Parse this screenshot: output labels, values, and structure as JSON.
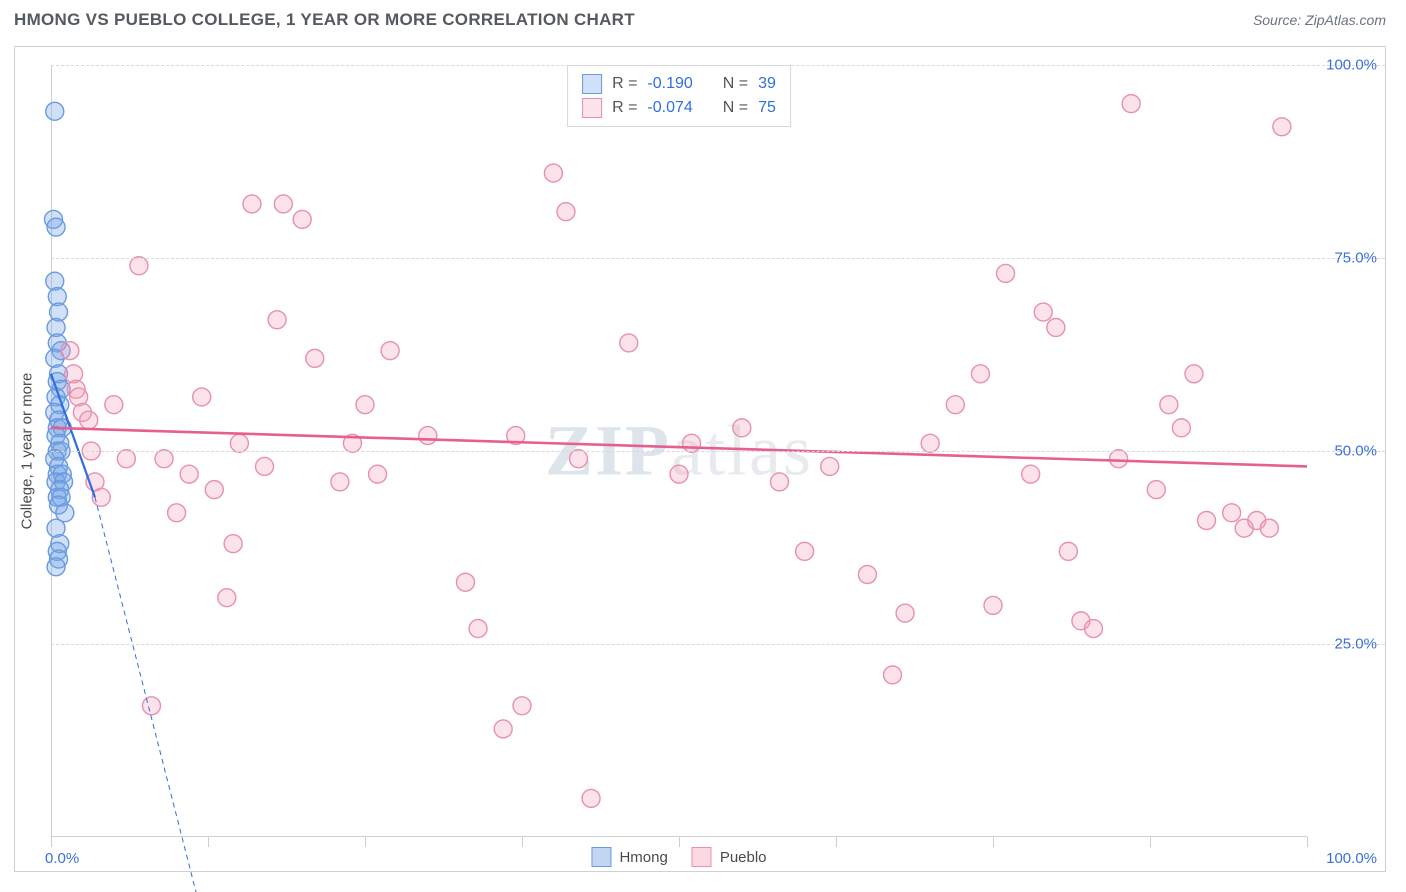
{
  "title": "HMONG VS PUEBLO COLLEGE, 1 YEAR OR MORE CORRELATION CHART",
  "source": "Source: ZipAtlas.com",
  "watermark": {
    "strong": "ZIP",
    "rest": "atlas"
  },
  "chart": {
    "type": "scatter",
    "ylabel": "College, 1 year or more",
    "xlim": [
      0,
      100
    ],
    "ylim": [
      0,
      100
    ],
    "y_ticks": [
      25,
      50,
      75,
      100
    ],
    "y_tick_labels": [
      "25.0%",
      "50.0%",
      "75.0%",
      "100.0%"
    ],
    "x_ticks": [
      0,
      12.5,
      25,
      37.5,
      50,
      62.5,
      75,
      87.5,
      100
    ],
    "x_axis_min_label": "0.0%",
    "x_axis_max_label": "100.0%",
    "background_color": "#ffffff",
    "grid_color": "#d8d8d8",
    "marker_radius": 9,
    "marker_stroke_width": 1.4,
    "series": [
      {
        "name": "Hmong",
        "fill": "rgba(120,165,230,0.35)",
        "stroke": "#6a9ae0",
        "r_label": "R =",
        "r_value": "-0.190",
        "n_label": "N =",
        "n_value": "39",
        "trend": {
          "x1": 0,
          "y1": 60,
          "x2": 3.5,
          "y2": 44,
          "stroke": "#2f6fe0",
          "width": 2.2,
          "dash": "none",
          "ext_x2": 12,
          "ext_y2": -10,
          "ext_dash": "5,4",
          "ext_width": 1
        },
        "points": [
          [
            0.3,
            94
          ],
          [
            0.2,
            80
          ],
          [
            0.4,
            79
          ],
          [
            0.3,
            72
          ],
          [
            0.5,
            70
          ],
          [
            0.6,
            68
          ],
          [
            0.4,
            66
          ],
          [
            0.5,
            64
          ],
          [
            0.8,
            63
          ],
          [
            0.3,
            62
          ],
          [
            0.6,
            60
          ],
          [
            0.5,
            59
          ],
          [
            0.8,
            58
          ],
          [
            0.4,
            57
          ],
          [
            0.7,
            56
          ],
          [
            0.3,
            55
          ],
          [
            0.6,
            54
          ],
          [
            0.5,
            53
          ],
          [
            0.9,
            53
          ],
          [
            0.4,
            52
          ],
          [
            0.7,
            51
          ],
          [
            0.5,
            50
          ],
          [
            0.8,
            50
          ],
          [
            0.3,
            49
          ],
          [
            0.6,
            48
          ],
          [
            0.5,
            47
          ],
          [
            0.9,
            47
          ],
          [
            0.4,
            46
          ],
          [
            1.0,
            46
          ],
          [
            0.7,
            45
          ],
          [
            0.5,
            44
          ],
          [
            0.8,
            44
          ],
          [
            0.6,
            43
          ],
          [
            1.1,
            42
          ],
          [
            0.4,
            40
          ],
          [
            0.7,
            38
          ],
          [
            0.5,
            37
          ],
          [
            0.6,
            36
          ],
          [
            0.4,
            35
          ]
        ]
      },
      {
        "name": "Pueblo",
        "fill": "rgba(245,160,185,0.30)",
        "stroke": "#e890ac",
        "r_label": "R =",
        "r_value": "-0.074",
        "n_label": "N =",
        "n_value": "75",
        "trend": {
          "x1": 0,
          "y1": 53,
          "x2": 100,
          "y2": 48,
          "stroke": "#e75f8e",
          "width": 2.6,
          "dash": "none"
        },
        "points": [
          [
            1.5,
            63
          ],
          [
            1.8,
            60
          ],
          [
            2.0,
            58
          ],
          [
            2.2,
            57
          ],
          [
            2.5,
            55
          ],
          [
            3.0,
            54
          ],
          [
            3.2,
            50
          ],
          [
            3.5,
            46
          ],
          [
            4.0,
            44
          ],
          [
            5.0,
            56
          ],
          [
            6.0,
            49
          ],
          [
            7.0,
            74
          ],
          [
            9.0,
            49
          ],
          [
            10.0,
            42
          ],
          [
            11.0,
            47
          ],
          [
            12.0,
            57
          ],
          [
            13.0,
            45
          ],
          [
            14.0,
            31
          ],
          [
            14.5,
            38
          ],
          [
            15.0,
            51
          ],
          [
            16.0,
            82
          ],
          [
            17.0,
            48
          ],
          [
            18.0,
            67
          ],
          [
            18.5,
            82
          ],
          [
            20.0,
            80
          ],
          [
            21.0,
            62
          ],
          [
            23.0,
            46
          ],
          [
            24.0,
            51
          ],
          [
            25.0,
            56
          ],
          [
            26.0,
            47
          ],
          [
            27.0,
            63
          ],
          [
            30.0,
            52
          ],
          [
            33.0,
            33
          ],
          [
            34.0,
            27
          ],
          [
            36.0,
            14
          ],
          [
            37.0,
            52
          ],
          [
            40.0,
            86
          ],
          [
            41.0,
            81
          ],
          [
            42.0,
            49
          ],
          [
            43.0,
            5
          ],
          [
            46.0,
            64
          ],
          [
            50.0,
            47
          ],
          [
            51.0,
            51
          ],
          [
            55.0,
            53
          ],
          [
            58.0,
            46
          ],
          [
            60.0,
            37
          ],
          [
            62.0,
            48
          ],
          [
            65.0,
            34
          ],
          [
            67.0,
            21
          ],
          [
            68.0,
            29
          ],
          [
            70.0,
            51
          ],
          [
            72.0,
            56
          ],
          [
            74.0,
            60
          ],
          [
            75.0,
            30
          ],
          [
            76.0,
            73
          ],
          [
            78.0,
            47
          ],
          [
            79.0,
            68
          ],
          [
            80.0,
            66
          ],
          [
            81.0,
            37
          ],
          [
            82.0,
            28
          ],
          [
            83.0,
            27
          ],
          [
            85.0,
            49
          ],
          [
            86.0,
            95
          ],
          [
            88.0,
            45
          ],
          [
            89.0,
            56
          ],
          [
            90.0,
            53
          ],
          [
            91.0,
            60
          ],
          [
            92.0,
            41
          ],
          [
            94.0,
            42
          ],
          [
            95.0,
            40
          ],
          [
            96.0,
            41
          ],
          [
            97.0,
            40
          ],
          [
            98.0,
            92
          ],
          [
            8.0,
            17
          ],
          [
            37.5,
            17
          ]
        ]
      }
    ],
    "bottom_legend": [
      {
        "label": "Hmong",
        "fill": "rgba(120,165,230,0.45)",
        "stroke": "#6a9ae0"
      },
      {
        "label": "Pueblo",
        "fill": "rgba(245,160,185,0.40)",
        "stroke": "#e890ac"
      }
    ]
  }
}
